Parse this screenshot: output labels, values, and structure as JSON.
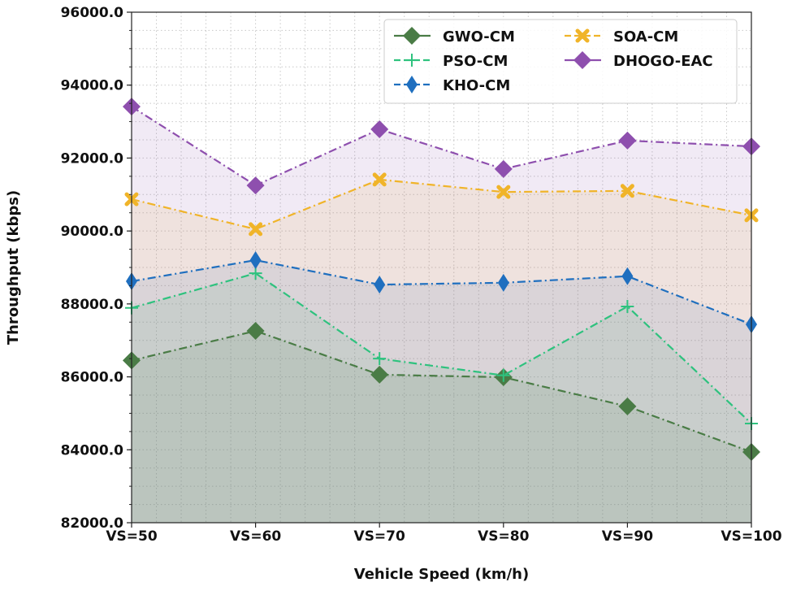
{
  "chart_data": {
    "type": "line",
    "xlabel": "Vehicle Speed (km/h)",
    "ylabel": "Throughput (kbps)",
    "categories": [
      "VS=50",
      "VS=60",
      "VS=70",
      "VS=80",
      "VS=90",
      "VS=100"
    ],
    "ylim": [
      82000,
      96000
    ],
    "yticks": [
      "82000.0",
      "84000.0",
      "86000.0",
      "88000.0",
      "90000.0",
      "92000.0",
      "94000.0",
      "96000.0"
    ],
    "grid": true,
    "legend_position": "top-right",
    "series": [
      {
        "name": "GWO-CM",
        "color": "#4a7c46",
        "marker": "diamond",
        "values": [
          86450,
          87260,
          86060,
          85990,
          85190,
          83940
        ]
      },
      {
        "name": "PSO-CM",
        "color": "#2ec27e",
        "marker": "plus",
        "values": [
          87890,
          88840,
          86500,
          86040,
          87930,
          84720
        ]
      },
      {
        "name": "KHO-CM",
        "color": "#1f6fbf",
        "marker": "thin-diamond",
        "values": [
          88620,
          89200,
          88530,
          88580,
          88760,
          87440
        ]
      },
      {
        "name": "SOA-CM",
        "color": "#f0b429",
        "marker": "x",
        "values": [
          90870,
          90050,
          91410,
          91070,
          91100,
          90430
        ]
      },
      {
        "name": "DHOGO-EAC",
        "color": "#8e4fae",
        "marker": "diamond",
        "values": [
          93410,
          91250,
          92790,
          91700,
          92480,
          92320
        ]
      }
    ]
  }
}
